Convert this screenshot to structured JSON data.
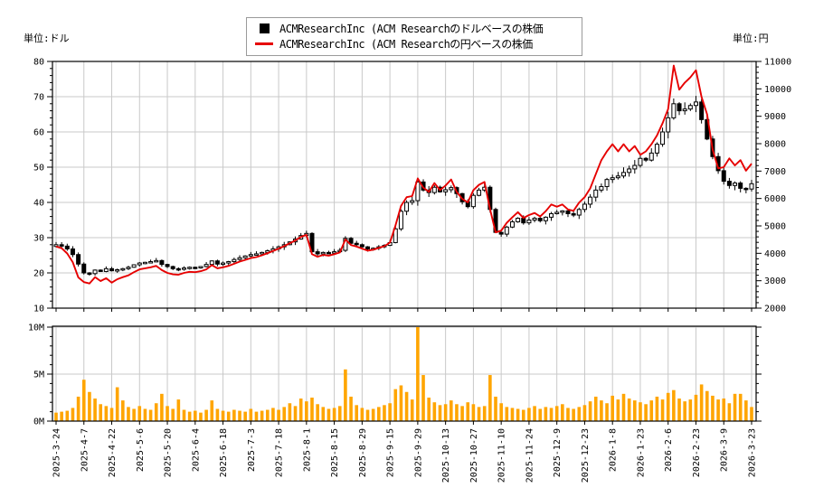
{
  "header": {
    "unit_left": "単位:ドル",
    "unit_right": "単位:円"
  },
  "legend": {
    "items": [
      {
        "label": "ACMResearchInc (ACM Researchのドルベースの株価",
        "marker": "black-square",
        "color": "#000000"
      },
      {
        "label": "ACMResearchInc (ACM Researchの円ベースの株価",
        "marker": "red-line",
        "color": "#e60000"
      }
    ]
  },
  "chart_data": {
    "type": "candlestick+line+volume",
    "title": "ACM Research stock price: USD (candles, left axis) vs JPY (red line, right axis), with volume",
    "x_start": "2025-3-24",
    "x_end": "2026-3-23",
    "x_tick_labels": [
      "2025-3-24",
      "2025-4-7",
      "2025-4-22",
      "2025-5-6",
      "2025-5-20",
      "2025-6-4",
      "2025-6-18",
      "2025-7-3",
      "2025-7-18",
      "2025-8-1",
      "2025-8-15",
      "2025-8-29",
      "2025-9-15",
      "2025-9-29",
      "2025-10-13",
      "2025-10-27",
      "2025-11-10",
      "2025-11-24",
      "2025-12-9",
      "2025-12-23",
      "2026-1-8",
      "2026-1-23",
      "2026-2-6",
      "2026-2-23",
      "2026-3-9",
      "2026-3-23"
    ],
    "left_axis": {
      "unit": "ドル",
      "min": 10,
      "max": 80,
      "tick_step": 10,
      "minor_step": 2,
      "tick_labels": [
        "10",
        "20",
        "30",
        "40",
        "50",
        "60",
        "70",
        "80"
      ]
    },
    "right_axis": {
      "unit": "円",
      "min": 2000,
      "max": 11000,
      "tick_step": 1000,
      "minor_step": 200,
      "tick_labels": [
        "2000",
        "3000",
        "4000",
        "5000",
        "6000",
        "7000",
        "8000",
        "9000",
        "10000",
        "11000"
      ]
    },
    "volume_axis": {
      "min": 0,
      "max": 10.1,
      "tick_labels": [
        "0M",
        "5M",
        "10M"
      ],
      "tick_values": [
        0,
        5,
        10
      ],
      "minor_step": 1
    },
    "grid": true,
    "legend_position": "top-center",
    "colors": {
      "candle_up_fill": "#ffffff",
      "candle_down_fill": "#000000",
      "candle_stroke": "#000000",
      "jpy_line": "#e60000",
      "volume_bar": "#ffa500",
      "grid": "#c9c9c9",
      "frame": "#000000"
    },
    "series": [
      {
        "name": "ACMResearchInc (ACM Researchのドルベースの株価",
        "type": "candlestick",
        "axis": "left",
        "close_usd": [
          28.0,
          27.6,
          26.8,
          25.2,
          22.5,
          20.0,
          19.8,
          20.8,
          20.4,
          21.2,
          20.6,
          20.9,
          21.2,
          21.6,
          22.3,
          22.8,
          23.0,
          23.2,
          23.5,
          22.4,
          21.8,
          21.2,
          21.0,
          21.4,
          21.6,
          21.5,
          21.8,
          22.4,
          23.4,
          22.5,
          22.8,
          23.2,
          23.8,
          24.3,
          24.8,
          25.2,
          25.4,
          25.8,
          26.3,
          26.8,
          27.4,
          28.0,
          28.8,
          29.6,
          30.6,
          31.2,
          26.0,
          25.4,
          25.8,
          25.6,
          26.0,
          26.4,
          29.8,
          28.4,
          28.0,
          27.4,
          26.8,
          27.0,
          27.4,
          27.8,
          28.6,
          32.5,
          37.5,
          40.0,
          40.5,
          45.8,
          43.5,
          42.8,
          44.3,
          43.0,
          43.6,
          44.2,
          42.5,
          40.2,
          38.8,
          42.0,
          43.5,
          44.3,
          38.0,
          31.5,
          31.0,
          33.0,
          34.5,
          35.5,
          34.2,
          35.0,
          35.5,
          34.8,
          35.8,
          36.8,
          37.2,
          37.6,
          36.8,
          36.4,
          38.0,
          39.5,
          41.5,
          43.5,
          44.5,
          46.5,
          47.0,
          47.5,
          48.5,
          49.5,
          50.5,
          52.5,
          52.0,
          54.0,
          56.5,
          60.0,
          64.0,
          68.0,
          66.0,
          66.5,
          67.5,
          68.5,
          63.5,
          58.0,
          53.0,
          49.0,
          46.0,
          44.8,
          45.5,
          44.0,
          43.8,
          45.3
        ]
      },
      {
        "name": "ACMResearchInc (ACM Researchの円ベースの株価",
        "type": "line",
        "axis": "right",
        "color": "#e60000",
        "close_jpy": [
          4250,
          4186,
          3993,
          3671,
          3120,
          2950,
          2900,
          3130,
          2990,
          3090,
          2930,
          3054,
          3131,
          3196,
          3311,
          3414,
          3453,
          3491,
          3543,
          3389,
          3286,
          3234,
          3221,
          3286,
          3324,
          3311,
          3350,
          3414,
          3569,
          3453,
          3491,
          3543,
          3620,
          3697,
          3762,
          3826,
          3864,
          3929,
          4006,
          4083,
          4173,
          4263,
          4366,
          4469,
          4597,
          4674,
          3967,
          3877,
          3941,
          3916,
          3967,
          4031,
          4507,
          4301,
          4250,
          4173,
          4096,
          4134,
          4199,
          4263,
          4391,
          5021,
          5729,
          6050,
          6089,
          6731,
          6397,
          6243,
          6564,
          6307,
          6474,
          6693,
          6243,
          5986,
          5857,
          6307,
          6500,
          6603,
          5600,
          4764,
          4829,
          5111,
          5317,
          5500,
          5291,
          5394,
          5471,
          5343,
          5536,
          5780,
          5700,
          5780,
          5600,
          5550,
          5850,
          6050,
          6371,
          6886,
          7400,
          7721,
          7979,
          7721,
          7979,
          7721,
          7914,
          7593,
          7721,
          7979,
          8300,
          8750,
          9264,
          10850,
          9971,
          10229,
          10421,
          10679,
          9714,
          9071,
          7786,
          7100,
          7143,
          7464,
          7207,
          7400,
          7014,
          7271
        ]
      },
      {
        "name": "volume",
        "type": "bar",
        "axis": "volume",
        "color": "#ffa500",
        "unit": "millions",
        "volume_m": [
          0.9,
          1.0,
          1.1,
          1.4,
          2.6,
          4.4,
          3.1,
          2.4,
          1.8,
          1.6,
          1.4,
          3.6,
          2.2,
          1.5,
          1.3,
          1.6,
          1.3,
          1.2,
          1.9,
          2.9,
          1.6,
          1.3,
          2.3,
          1.2,
          1.0,
          1.1,
          0.9,
          1.2,
          2.2,
          1.3,
          1.1,
          1.0,
          1.2,
          1.1,
          1.0,
          1.3,
          1.0,
          1.1,
          1.2,
          1.4,
          1.2,
          1.5,
          1.9,
          1.6,
          2.4,
          2.1,
          2.5,
          1.8,
          1.5,
          1.3,
          1.4,
          1.6,
          5.5,
          2.6,
          1.7,
          1.4,
          1.2,
          1.3,
          1.5,
          1.7,
          1.9,
          3.4,
          3.8,
          3.1,
          2.3,
          10.5,
          4.9,
          2.5,
          2.0,
          1.7,
          1.8,
          2.2,
          1.8,
          1.6,
          2.0,
          1.8,
          1.5,
          1.6,
          4.9,
          2.6,
          1.9,
          1.5,
          1.4,
          1.3,
          1.2,
          1.4,
          1.6,
          1.3,
          1.5,
          1.4,
          1.6,
          1.8,
          1.4,
          1.3,
          1.5,
          1.7,
          2.1,
          2.6,
          2.2,
          1.9,
          2.7,
          2.3,
          2.9,
          2.4,
          2.2,
          2.0,
          1.8,
          2.2,
          2.6,
          2.3,
          3.0,
          3.3,
          2.4,
          2.1,
          2.3,
          2.8,
          3.9,
          3.2,
          2.7,
          2.3,
          2.4,
          1.9,
          2.9,
          2.9,
          2.2,
          1.5
        ]
      }
    ]
  }
}
